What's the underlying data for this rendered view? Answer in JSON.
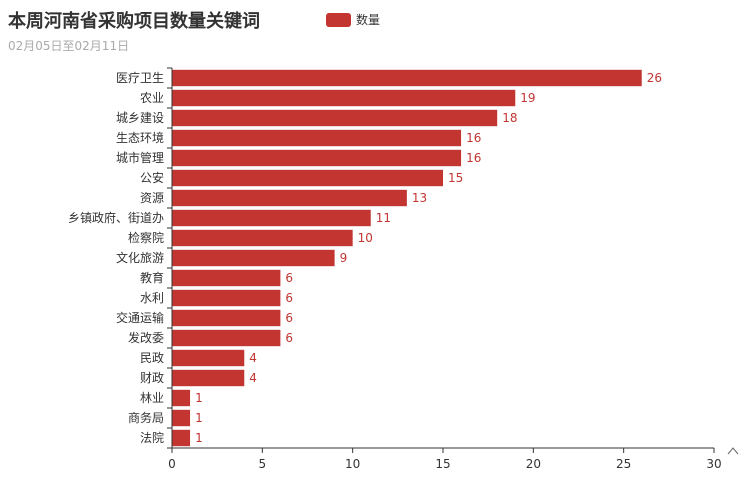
{
  "header": {
    "title": "本周河南省采购项目数量关键词",
    "subtitle": "02月05日至02月11日"
  },
  "legend": {
    "label": "数量",
    "color": "#c23531"
  },
  "toolbox": {
    "icon": "chevron-up-icon"
  },
  "chart_data": {
    "type": "bar",
    "orientation": "horizontal",
    "title": "本周河南省采购项目数量关键词",
    "subtitle": "02月05日至02月11日",
    "categories": [
      "医疗卫生",
      "农业",
      "城乡建设",
      "生态环境",
      "城市管理",
      "公安",
      "资源",
      "乡镇政府、街道办",
      "检察院",
      "文化旅游",
      "教育",
      "水利",
      "交通运输",
      "发改委",
      "民政",
      "财政",
      "林业",
      "商务局",
      "法院"
    ],
    "series": [
      {
        "name": "数量",
        "values": [
          26,
          19,
          18,
          16,
          16,
          15,
          13,
          11,
          10,
          9,
          6,
          6,
          6,
          6,
          4,
          4,
          1,
          1,
          1
        ]
      }
    ],
    "xlim": [
      0,
      30
    ],
    "xticks": [
      0,
      5,
      10,
      15,
      20,
      25,
      30
    ],
    "grid": false,
    "legend_position": "top-center",
    "bar_color": "#c23531",
    "data_labels": true
  }
}
